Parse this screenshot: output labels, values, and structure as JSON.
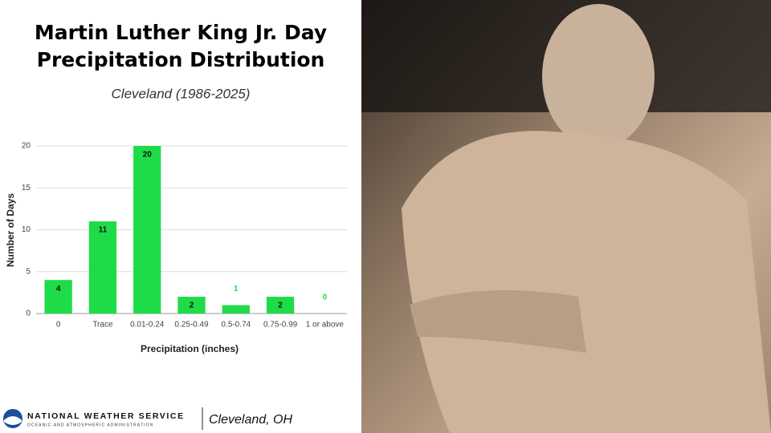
{
  "chart_data": {
    "type": "bar",
    "title": [
      "Martin Luther King Jr. Day",
      "Precipitation Distribution"
    ],
    "subtitle": "Cleveland (1986-2025)",
    "x_label": "Precipitation (inches)",
    "y_label": "Number of Days",
    "categories": [
      "0",
      "Trace",
      "0.01-0.24",
      "0.25-0.49",
      "0.5-0.74",
      "0.75-0.99",
      "1 or above"
    ],
    "values": [
      4,
      11,
      20,
      2,
      1,
      2,
      0
    ],
    "color": "#1edc47",
    "ylim": [
      0,
      20
    ],
    "yticks": [
      0,
      5,
      10,
      15,
      20
    ],
    "grid": true
  },
  "footer": {
    "agency": "NATIONAL WEATHER SERVICE",
    "agency_sub": "OCEANIC AND ATMOSPHERIC ADMINISTRATION",
    "office": "Cleveland, OH"
  }
}
